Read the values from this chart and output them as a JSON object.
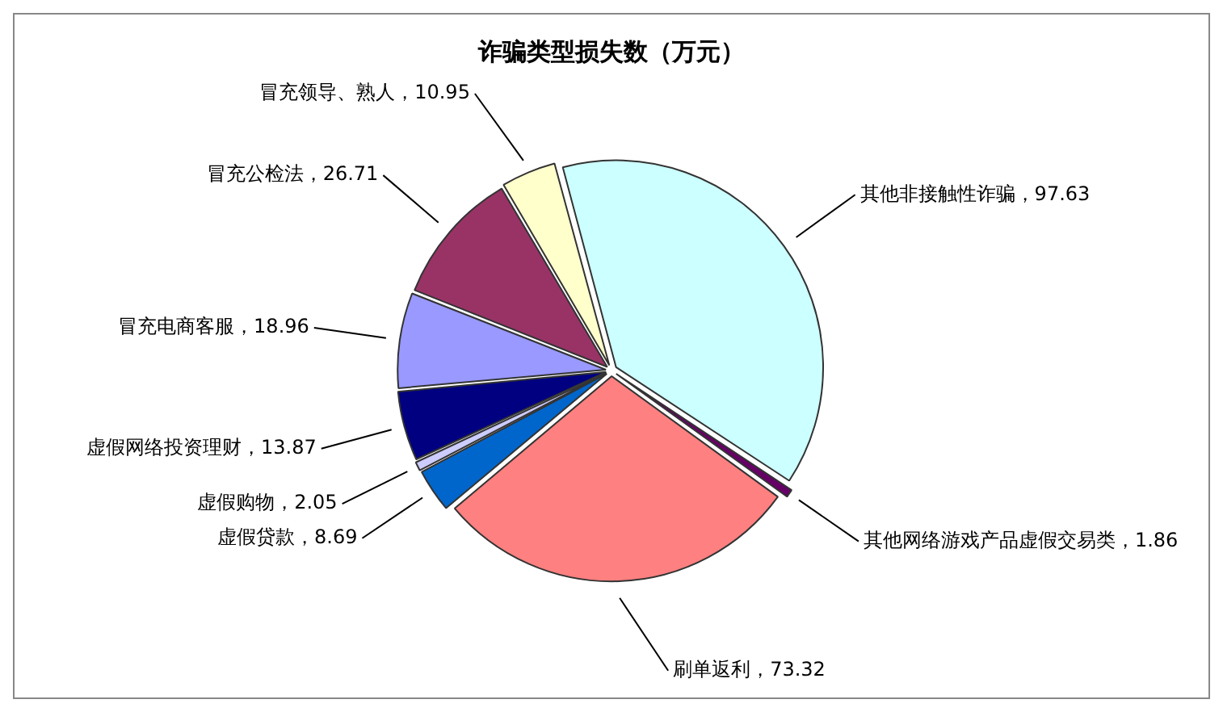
{
  "chart_data": {
    "type": "pie",
    "title": "诈骗类型损失数（万元）",
    "categories": [
      "其他非接触性诈骗",
      "其他网络游戏产品虚假交易类",
      "刷单返利",
      "虚假贷款",
      "虚假购物",
      "虚假网络投资理财",
      "冒充电商客服",
      "冒充公检法",
      "冒充领导、熟人"
    ],
    "values": [
      97.63,
      1.86,
      73.32,
      8.69,
      2.05,
      13.87,
      18.96,
      26.71,
      10.95
    ],
    "colors": [
      "#ccffff",
      "#660066",
      "#ff8080",
      "#0066cc",
      "#ccccff",
      "#000080",
      "#9999ff",
      "#993366",
      "#ffffcc"
    ],
    "value_labels": [
      "，97.63",
      "，1.86",
      "，73.32",
      "，8.69",
      "，2.05",
      "，13.87",
      "，18.96",
      "，26.71",
      "，10.95"
    ],
    "legend": false
  }
}
